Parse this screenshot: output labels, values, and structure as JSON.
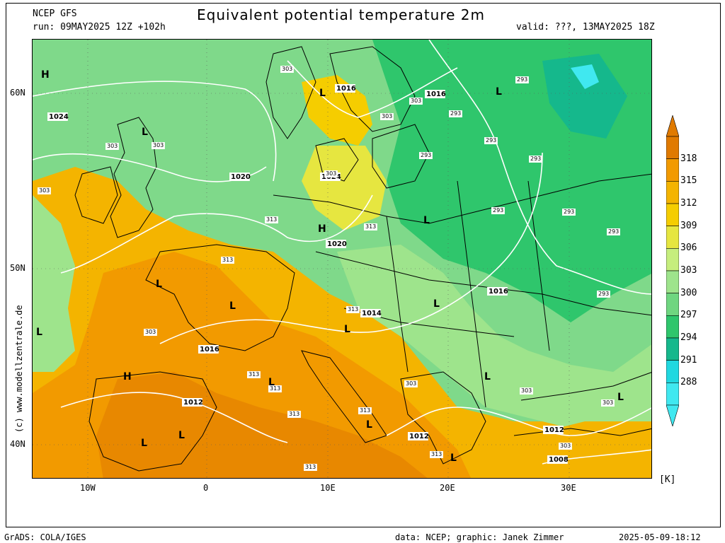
{
  "header": {
    "model": "NCEP GFS",
    "run": "run: 09MAY2025 12Z +102h",
    "title": "Equivalent potential temperature 2m",
    "valid": "valid: ???, 13MAY2025 18Z"
  },
  "axes": {
    "lat_labels": [
      "60N",
      "50N",
      "40N"
    ],
    "lon_labels": [
      "10W",
      "0",
      "10E",
      "20E",
      "30E"
    ]
  },
  "copyright": "(c) www.modellzentrale.de",
  "colorbar": {
    "unit": "[K]",
    "levels": [
      "318",
      "315",
      "312",
      "309",
      "306",
      "303",
      "300",
      "297",
      "294",
      "291",
      "288"
    ],
    "colors": [
      "#e07a00",
      "#f29a00",
      "#f4b400",
      "#f5cd00",
      "#e6e640",
      "#c6ee7d",
      "#9ee48c",
      "#6fd680",
      "#2fc66c",
      "#15b88c",
      "#20d8e0",
      "#40e8f0"
    ]
  },
  "pressure_labels": [
    "1024",
    "1020",
    "1024",
    "1016",
    "1016",
    "1020",
    "1016",
    "1014",
    "1016",
    "1012",
    "1012",
    "1012",
    "1008"
  ],
  "theta_labels": [
    "303",
    "303",
    "303",
    "303",
    "303",
    "303",
    "303",
    "313",
    "313",
    "313",
    "313",
    "313",
    "313",
    "313",
    "293",
    "293",
    "293",
    "293",
    "293",
    "293",
    "293",
    "293",
    "293",
    "303",
    "303",
    "303",
    "303",
    "303",
    "313",
    "313",
    "313"
  ],
  "centers": {
    "H": [
      "H",
      "H",
      "H"
    ],
    "L": [
      "L",
      "L",
      "L",
      "L",
      "L",
      "L",
      "L",
      "L",
      "L",
      "L",
      "L",
      "L",
      "L",
      "L",
      "L",
      "L"
    ]
  },
  "footer": {
    "left": "GrADS: COLA/IGES",
    "middle": "data: NCEP; graphic: Janek Zimmer",
    "right": "2025-05-09-18:12"
  }
}
